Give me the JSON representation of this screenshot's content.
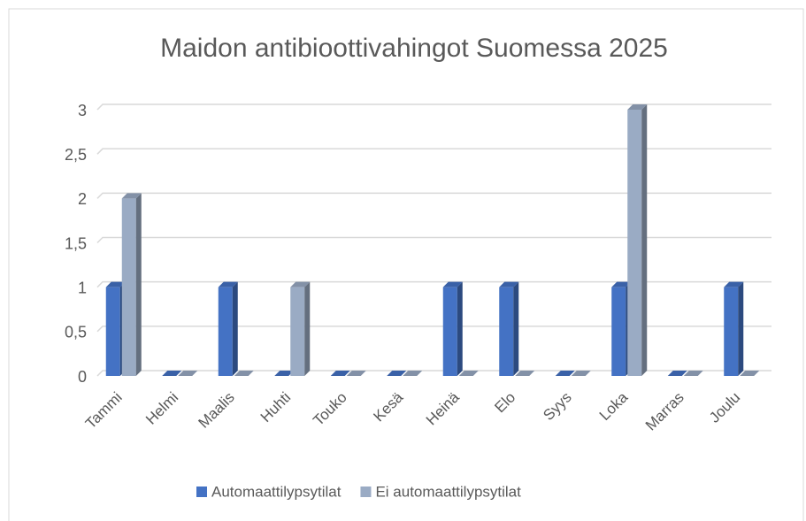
{
  "chart_data": {
    "type": "bar",
    "title": "Maidon antibioottivahingot Suomessa 2025",
    "categories": [
      "Tammi",
      "Helmi",
      "Maalis",
      "Huhti",
      "Touko",
      "Kesä",
      "Heinä",
      "Elo",
      "Syys",
      "Loka",
      "Marras",
      "Joulu"
    ],
    "series": [
      {
        "name": "Automaattilypsytilat",
        "color": "#4472c4",
        "values": [
          1,
          0,
          1,
          0,
          0,
          0,
          1,
          1,
          0,
          1,
          0,
          1
        ]
      },
      {
        "name": "Ei automaattilypsytilat",
        "color": "#9aabc4",
        "values": [
          2,
          0,
          0,
          1,
          0,
          0,
          0,
          0,
          0,
          3,
          0,
          0
        ]
      }
    ],
    "ylim": [
      0,
      3
    ],
    "yticks": [
      0,
      {
        "value": 0.5,
        "label": "0,5"
      },
      1,
      {
        "value": 1.5,
        "label": "1,5"
      },
      2,
      {
        "value": 2.5,
        "label": "2,5"
      },
      3
    ],
    "grid": true,
    "legend": "bottom"
  }
}
